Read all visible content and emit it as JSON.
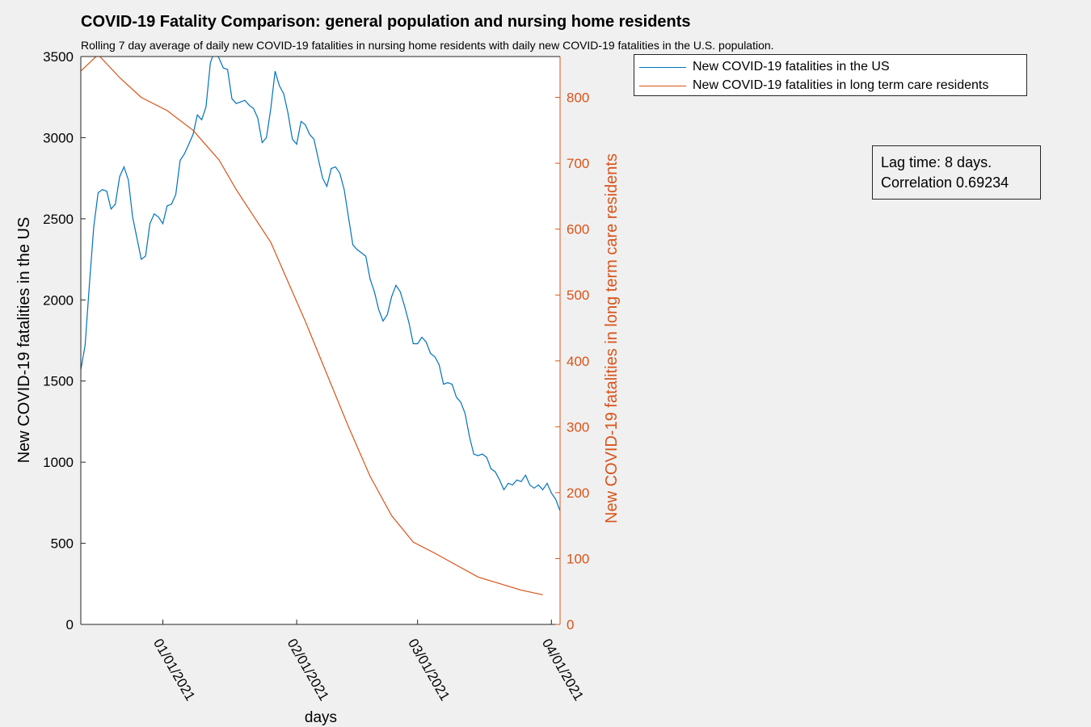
{
  "chart_data": {
    "type": "line",
    "title": "COVID-19 Fatality Comparison: general population and nursing home residents",
    "subtitle": "Rolling 7 day average of daily new COVID-19 fatalities in nursing home residents with daily new COVID-19 fatalities in the U.S. population.",
    "xlabel": "days",
    "ylabel_left": "New COVID-19 fatalities in the US",
    "ylabel_right": "New COVID-19 fatalities in long term care residents",
    "xlim": [
      "2020-12-13",
      "2021-04-03"
    ],
    "ylim_left": [
      0,
      3500
    ],
    "ylim_right": [
      0,
      862
    ],
    "xticks": [
      {
        "date": "2021-01-01",
        "label": "01/01/2021"
      },
      {
        "date": "2021-02-01",
        "label": "02/01/2021"
      },
      {
        "date": "2021-03-01",
        "label": "03/01/2021"
      },
      {
        "date": "2021-04-01",
        "label": "04/01/2021"
      }
    ],
    "yticks_left": [
      0,
      500,
      1000,
      1500,
      2000,
      2500,
      3000,
      3500
    ],
    "yticks_right": [
      0,
      100,
      200,
      300,
      400,
      500,
      600,
      700,
      800
    ],
    "grid": false,
    "legend": "outside top-right",
    "series": [
      {
        "name": "New COVID-19 fatalities in the US",
        "color": "#0072bd",
        "axis": "left",
        "x": [
          "2020-12-13",
          "2020-12-14",
          "2020-12-15",
          "2020-12-16",
          "2020-12-17",
          "2020-12-18",
          "2020-12-19",
          "2020-12-20",
          "2020-12-21",
          "2020-12-22",
          "2020-12-23",
          "2020-12-24",
          "2020-12-25",
          "2020-12-26",
          "2020-12-27",
          "2020-12-28",
          "2020-12-29",
          "2020-12-30",
          "2020-12-31",
          "2021-01-01",
          "2021-01-02",
          "2021-01-03",
          "2021-01-04",
          "2021-01-05",
          "2021-01-06",
          "2021-01-07",
          "2021-01-08",
          "2021-01-09",
          "2021-01-10",
          "2021-01-11",
          "2021-01-12",
          "2021-01-13",
          "2021-01-14",
          "2021-01-15",
          "2021-01-16",
          "2021-01-17",
          "2021-01-18",
          "2021-01-19",
          "2021-01-20",
          "2021-01-21",
          "2021-01-22",
          "2021-01-23",
          "2021-01-24",
          "2021-01-25",
          "2021-01-26",
          "2021-01-27",
          "2021-01-28",
          "2021-01-29",
          "2021-01-30",
          "2021-01-31",
          "2021-02-01",
          "2021-02-02",
          "2021-02-03",
          "2021-02-04",
          "2021-02-05",
          "2021-02-06",
          "2021-02-07",
          "2021-02-08",
          "2021-02-09",
          "2021-02-10",
          "2021-02-11",
          "2021-02-12",
          "2021-02-13",
          "2021-02-14",
          "2021-02-15",
          "2021-02-16",
          "2021-02-17",
          "2021-02-18",
          "2021-02-19",
          "2021-02-20",
          "2021-02-21",
          "2021-02-22",
          "2021-02-23",
          "2021-02-24",
          "2021-02-25",
          "2021-02-26",
          "2021-02-27",
          "2021-02-28",
          "2021-03-01",
          "2021-03-02",
          "2021-03-03",
          "2021-03-04",
          "2021-03-05",
          "2021-03-06",
          "2021-03-07",
          "2021-03-08",
          "2021-03-09",
          "2021-03-10",
          "2021-03-11",
          "2021-03-12",
          "2021-03-13",
          "2021-03-14",
          "2021-03-15",
          "2021-03-16",
          "2021-03-17",
          "2021-03-18",
          "2021-03-19",
          "2021-03-20",
          "2021-03-21",
          "2021-03-22",
          "2021-03-23",
          "2021-03-24",
          "2021-03-25",
          "2021-03-26",
          "2021-03-27",
          "2021-03-28",
          "2021-03-29",
          "2021-03-30",
          "2021-03-31",
          "2021-04-01",
          "2021-04-02",
          "2021-04-03"
        ],
        "y": [
          1570,
          1720,
          2100,
          2450,
          2660,
          2680,
          2670,
          2560,
          2590,
          2760,
          2820,
          2740,
          2510,
          2380,
          2250,
          2270,
          2470,
          2530,
          2510,
          2470,
          2580,
          2590,
          2650,
          2860,
          2900,
          2960,
          3020,
          3140,
          3110,
          3190,
          3460,
          3540,
          3490,
          3430,
          3420,
          3240,
          3210,
          3220,
          3230,
          3200,
          3180,
          3120,
          2970,
          3000,
          3180,
          3410,
          3320,
          3270,
          3150,
          2990,
          2960,
          3100,
          3080,
          3020,
          2990,
          2870,
          2750,
          2700,
          2810,
          2820,
          2780,
          2680,
          2510,
          2340,
          2310,
          2290,
          2270,
          2130,
          2050,
          1940,
          1870,
          1910,
          2020,
          2090,
          2050,
          1960,
          1860,
          1730,
          1730,
          1770,
          1740,
          1670,
          1650,
          1600,
          1480,
          1490,
          1480,
          1400,
          1370,
          1300,
          1160,
          1050,
          1040,
          1050,
          1030,
          960,
          940,
          890,
          830,
          870,
          860,
          890,
          880,
          920,
          860,
          840,
          860,
          830,
          870,
          810,
          770,
          700
        ]
      },
      {
        "name": "New COVID-19 fatalities in long term care residents",
        "color": "#d95319",
        "axis": "right",
        "x": [
          "2020-12-13",
          "2020-12-17",
          "2020-12-22",
          "2020-12-27",
          "2021-01-02",
          "2021-01-08",
          "2021-01-14",
          "2021-01-18",
          "2021-01-22",
          "2021-01-26",
          "2021-01-30",
          "2021-02-03",
          "2021-02-08",
          "2021-02-13",
          "2021-02-18",
          "2021-02-23",
          "2021-02-28",
          "2021-03-05",
          "2021-03-10",
          "2021-03-15",
          "2021-03-20",
          "2021-03-25",
          "2021-03-30"
        ],
        "y": [
          840,
          865,
          830,
          800,
          780,
          750,
          705,
          660,
          620,
          580,
          520,
          460,
          380,
          300,
          225,
          165,
          125,
          108,
          90,
          72,
          62,
          52,
          45
        ]
      }
    ]
  },
  "annotation": {
    "line1": "Lag time: 8 days.",
    "line2": "Correlation 0.69234"
  },
  "legend": {
    "items": [
      {
        "label": "New COVID-19 fatalities in the US",
        "color": "#0072bd"
      },
      {
        "label": "New COVID-19 fatalities in long term care residents",
        "color": "#d95319"
      }
    ]
  }
}
